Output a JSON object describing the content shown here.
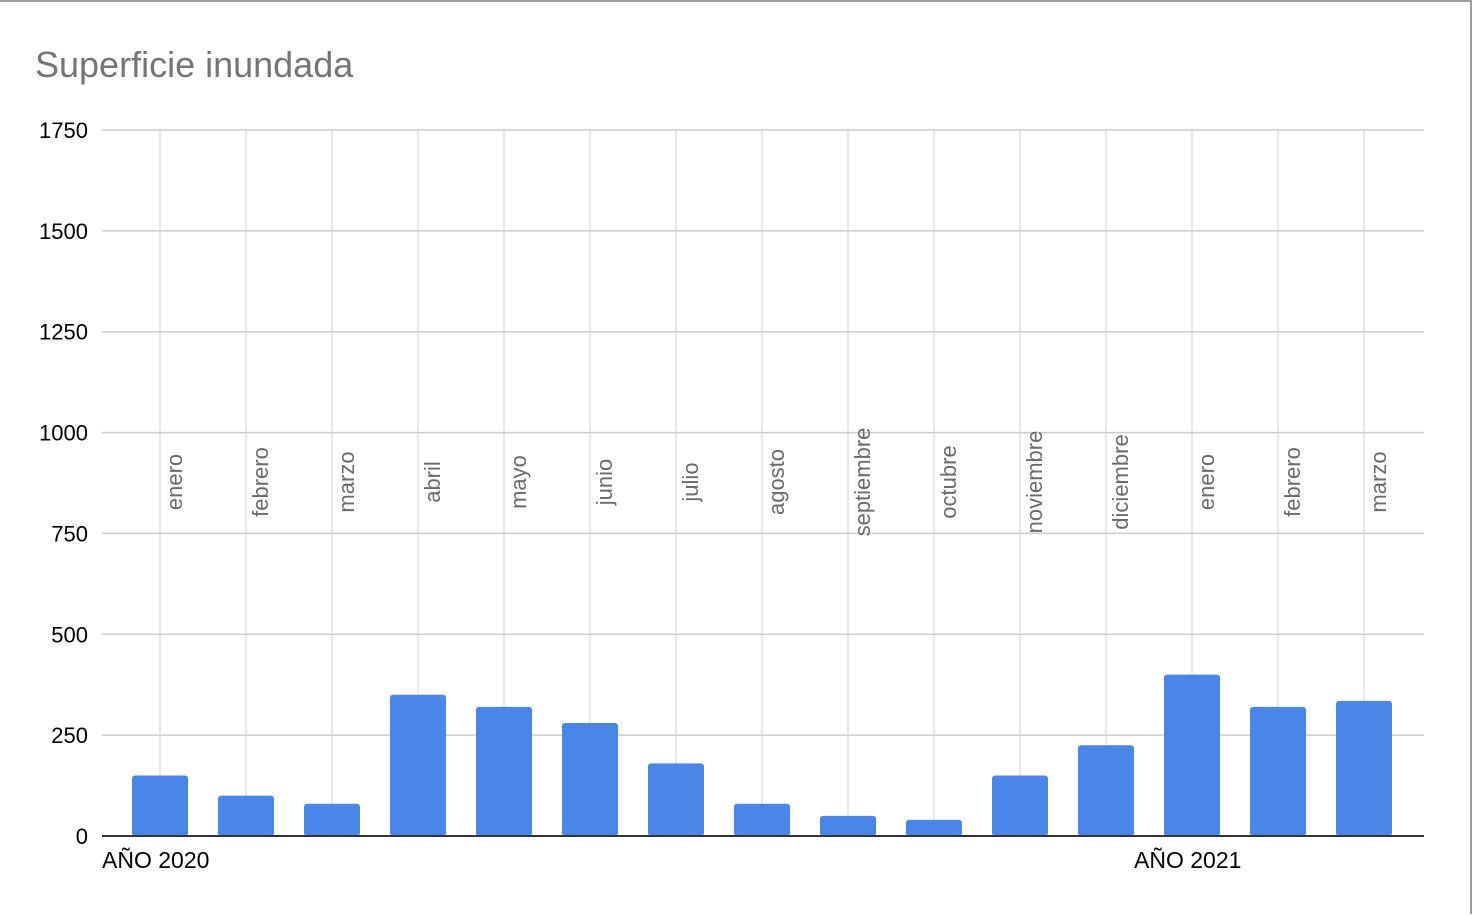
{
  "chart_data": {
    "type": "bar",
    "title": "Superficie inundada",
    "categories": [
      "enero",
      "febrero",
      "marzo",
      "abril",
      "mayo",
      "junio",
      "julio",
      "agosto",
      "septiembre",
      "octubre",
      "noviembre",
      "diciembre",
      "enero",
      "febrero",
      "marzo"
    ],
    "groups": [
      {
        "label": "AÑO 2020",
        "start_index": 0
      },
      {
        "label": "AÑO 2021",
        "start_index": 12
      }
    ],
    "series": [
      {
        "values": [
          150,
          100,
          80,
          350,
          320,
          280,
          180,
          80,
          50,
          40,
          150,
          225,
          400,
          320,
          335
        ],
        "color": "#4a86e8"
      }
    ],
    "ylim": [
      0,
      1750
    ],
    "yticks": [
      0,
      250,
      500,
      750,
      1000,
      1250,
      1500,
      1750
    ],
    "grid": true,
    "legend": "none"
  }
}
